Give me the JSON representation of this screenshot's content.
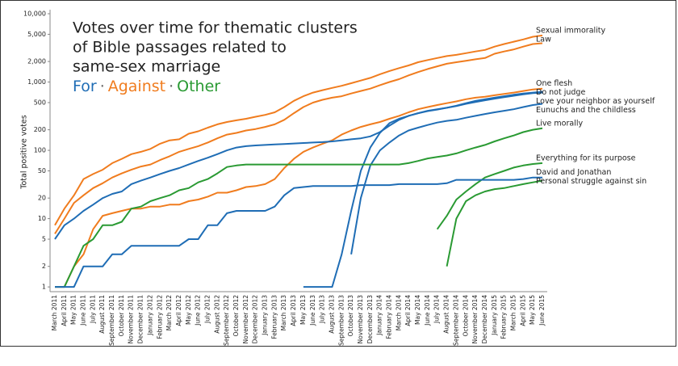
{
  "chart_data": {
    "type": "line",
    "title_lines": [
      "Votes over time for thematic clusters",
      "of Bible passages related to",
      "same-sex marriage"
    ],
    "color_key": [
      {
        "label": "For",
        "color": "#1f6db5"
      },
      {
        "label": "Against",
        "color": "#f07c1e"
      },
      {
        "label": "Other",
        "color": "#2a9a33"
      }
    ],
    "color_key_separator": "·",
    "ylabel": "Total positive votes",
    "log_scale": true,
    "ylim": [
      0.9,
      10000
    ],
    "yticks": [
      1,
      2,
      5,
      10,
      20,
      50,
      100,
      200,
      500,
      {
        "value": 1000,
        "label": "1,000"
      },
      {
        "value": 2000,
        "label": "2,000"
      },
      {
        "value": 5000,
        "label": "5,000"
      },
      {
        "value": 10000,
        "label": "10,000"
      }
    ],
    "categories": [
      "March 2011",
      "April 2011",
      "May 2011",
      "June 2011",
      "July 2011",
      "August 2011",
      "September 2011",
      "October 2011",
      "November 2011",
      "December 2011",
      "January 2012",
      "February 2012",
      "March 2012",
      "April 2012",
      "May 2012",
      "June 2012",
      "July 2012",
      "August 2012",
      "September 2012",
      "October 2012",
      "November 2012",
      "December 2012",
      "January 2013",
      "February 2013",
      "March 2013",
      "April 2013",
      "May 2013",
      "June 2013",
      "July 2013",
      "August 2013",
      "September 2013",
      "October 2013",
      "November 2013",
      "December 2013",
      "January 2014",
      "February 2014",
      "March 2014",
      "April 2014",
      "May 2014",
      "June 2014",
      "July 2014",
      "August 2014",
      "September 2014",
      "October 2014",
      "November 2014",
      "December 2014",
      "January 2015",
      "February 2015",
      "March 2015",
      "April 2015",
      "May 2015",
      "June 2015"
    ],
    "series": [
      {
        "name": "Sexual immorality",
        "color": "#f07c1e",
        "values": [
          8,
          14,
          22,
          38,
          45,
          52,
          65,
          75,
          88,
          95,
          105,
          125,
          140,
          145,
          175,
          190,
          215,
          240,
          260,
          275,
          290,
          310,
          330,
          360,
          430,
          530,
          620,
          700,
          760,
          820,
          880,
          960,
          1050,
          1150,
          1300,
          1450,
          1600,
          1750,
          1950,
          2100,
          2250,
          2400,
          2500,
          2650,
          2800,
          2950,
          3300,
          3600,
          3900,
          4200,
          4600,
          4800
        ]
      },
      {
        "name": "Law",
        "color": "#f07c1e",
        "values": [
          6,
          10,
          17,
          22,
          28,
          33,
          40,
          46,
          52,
          58,
          62,
          72,
          82,
          95,
          105,
          115,
          130,
          150,
          170,
          180,
          195,
          205,
          220,
          240,
          280,
          350,
          430,
          500,
          550,
          590,
          620,
          680,
          740,
          800,
          900,
          1000,
          1100,
          1250,
          1400,
          1550,
          1700,
          1850,
          1950,
          2050,
          2150,
          2250,
          2600,
          2800,
          3000,
          3300,
          3600,
          3700
        ]
      },
      {
        "name": "One flesh",
        "color": "#f07c1e",
        "values": [
          1,
          1,
          2,
          3,
          7,
          11,
          12,
          13,
          14,
          14,
          15,
          15,
          16,
          16,
          18,
          19,
          21,
          24,
          24,
          26,
          29,
          30,
          32,
          38,
          55,
          75,
          95,
          110,
          125,
          140,
          170,
          195,
          220,
          240,
          260,
          290,
          320,
          360,
          400,
          430,
          460,
          490,
          520,
          560,
          590,
          610,
          640,
          670,
          700,
          740,
          780,
          800
        ]
      },
      {
        "name": "Love your neighbor as yourself",
        "color": "#1f6db5",
        "values": [
          5,
          8,
          10,
          13,
          16,
          20,
          23,
          25,
          32,
          36,
          40,
          45,
          50,
          55,
          62,
          70,
          78,
          88,
          100,
          110,
          115,
          118,
          120,
          122,
          124,
          126,
          128,
          130,
          132,
          135,
          140,
          145,
          150,
          160,
          185,
          230,
          280,
          320,
          350,
          375,
          395,
          420,
          445,
          480,
          510,
          540,
          570,
          600,
          630,
          660,
          690,
          700
        ]
      },
      {
        "name": "Do not judge",
        "color": "#1f6db5",
        "values": [
          null,
          null,
          null,
          null,
          null,
          null,
          null,
          null,
          null,
          null,
          null,
          null,
          null,
          null,
          null,
          null,
          null,
          null,
          null,
          null,
          null,
          null,
          null,
          null,
          null,
          null,
          1,
          1,
          1,
          1,
          3,
          13,
          50,
          110,
          180,
          250,
          290,
          320,
          350,
          380,
          400,
          420,
          450,
          490,
          530,
          560,
          590,
          620,
          650,
          680,
          700,
          720
        ]
      },
      {
        "name": "Eunuchs and the childless",
        "color": "#1f6db5",
        "values": [
          null,
          null,
          null,
          null,
          null,
          null,
          null,
          null,
          null,
          null,
          null,
          null,
          null,
          null,
          null,
          null,
          null,
          null,
          null,
          null,
          null,
          null,
          null,
          null,
          null,
          null,
          null,
          null,
          null,
          null,
          null,
          3,
          20,
          60,
          100,
          130,
          165,
          195,
          215,
          235,
          255,
          270,
          280,
          300,
          320,
          340,
          360,
          380,
          400,
          430,
          460,
          480
        ]
      },
      {
        "name": "Live morally",
        "color": "#2a9a33",
        "values": [
          1,
          1,
          2,
          4,
          5,
          8,
          8,
          9,
          14,
          15,
          18,
          20,
          22,
          26,
          28,
          34,
          38,
          46,
          57,
          60,
          62,
          62,
          62,
          62,
          62,
          62,
          62,
          62,
          62,
          62,
          62,
          62,
          62,
          62,
          62,
          62,
          62,
          65,
          70,
          76,
          80,
          84,
          90,
          100,
          110,
          120,
          135,
          150,
          165,
          185,
          200,
          210
        ]
      },
      {
        "name": "Everything for its purpose",
        "color": "#2a9a33",
        "values": [
          null,
          null,
          null,
          null,
          null,
          null,
          null,
          null,
          null,
          null,
          null,
          null,
          null,
          null,
          null,
          null,
          null,
          null,
          null,
          null,
          null,
          null,
          null,
          null,
          null,
          null,
          null,
          null,
          null,
          null,
          null,
          null,
          null,
          null,
          null,
          null,
          null,
          null,
          null,
          null,
          7,
          11,
          19,
          25,
          32,
          40,
          45,
          50,
          56,
          60,
          63,
          65
        ]
      },
      {
        "name": "David and Jonathan",
        "color": "#1f6db5",
        "values": [
          1,
          1,
          1,
          2,
          2,
          2,
          3,
          3,
          4,
          4,
          4,
          4,
          4,
          4,
          5,
          5,
          8,
          8,
          12,
          13,
          13,
          13,
          13,
          15,
          22,
          28,
          29,
          30,
          30,
          30,
          30,
          30,
          31,
          31,
          31,
          31,
          32,
          32,
          32,
          32,
          32,
          33,
          37,
          37,
          37,
          37,
          37,
          37,
          37,
          38,
          40,
          40
        ]
      },
      {
        "name": "Personal struggle against sin",
        "color": "#2a9a33",
        "values": [
          null,
          null,
          null,
          null,
          null,
          null,
          null,
          null,
          null,
          null,
          null,
          null,
          null,
          null,
          null,
          null,
          null,
          null,
          null,
          null,
          null,
          null,
          null,
          null,
          null,
          null,
          null,
          null,
          null,
          null,
          null,
          null,
          null,
          null,
          null,
          null,
          null,
          null,
          null,
          null,
          null,
          2,
          10,
          18,
          22,
          25,
          27,
          28,
          30,
          32,
          34,
          36
        ]
      }
    ]
  }
}
